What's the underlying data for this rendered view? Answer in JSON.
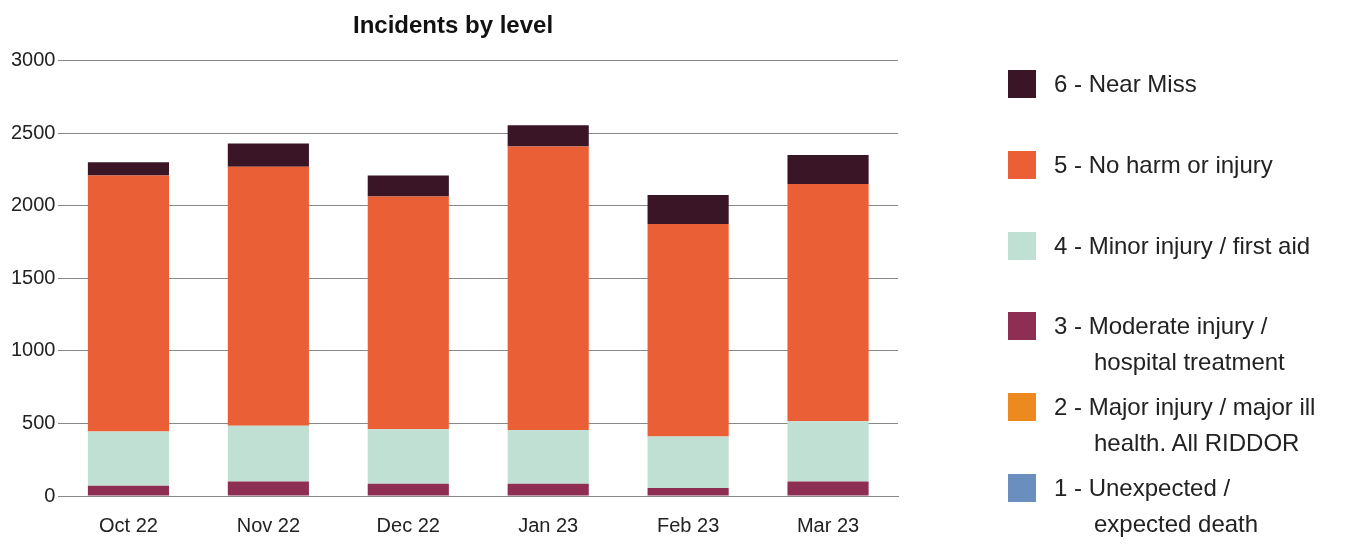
{
  "chart_data": {
    "type": "bar",
    "title": "Incidents by level",
    "stacked": true,
    "categories": [
      "Oct 22",
      "Nov 22",
      "Dec 22",
      "Jan 23",
      "Feb 23",
      "Mar 23"
    ],
    "series": [
      {
        "name": "1 - Unexpected / expected death",
        "color": "#6a8fbf",
        "values": [
          0,
          0,
          0,
          0,
          0,
          0
        ]
      },
      {
        "name": "2 - Major injury / major ill health. All RIDDOR",
        "color": "#ec8a1f",
        "values": [
          0,
          0,
          0,
          0,
          0,
          0
        ]
      },
      {
        "name": "3 - Moderate injury / hospital treatment",
        "color": "#8e2e52",
        "values": [
          70,
          100,
          85,
          85,
          55,
          100
        ]
      },
      {
        "name": "4 - Minor injury / first aid",
        "color": "#bfe0d2",
        "values": [
          375,
          385,
          375,
          370,
          355,
          415
        ]
      },
      {
        "name": "5 - No harm or injury",
        "color": "#ea5f35",
        "values": [
          1765,
          1785,
          1605,
          1955,
          1465,
          1635
        ]
      },
      {
        "name": "6 - Near Miss",
        "color": "#3a1526",
        "values": [
          90,
          160,
          145,
          145,
          200,
          200
        ]
      }
    ],
    "ylim": [
      0,
      3000
    ],
    "yticks": [
      0,
      500,
      1000,
      1500,
      2000,
      2500,
      3000
    ],
    "grid": "y",
    "legend": "right"
  }
}
